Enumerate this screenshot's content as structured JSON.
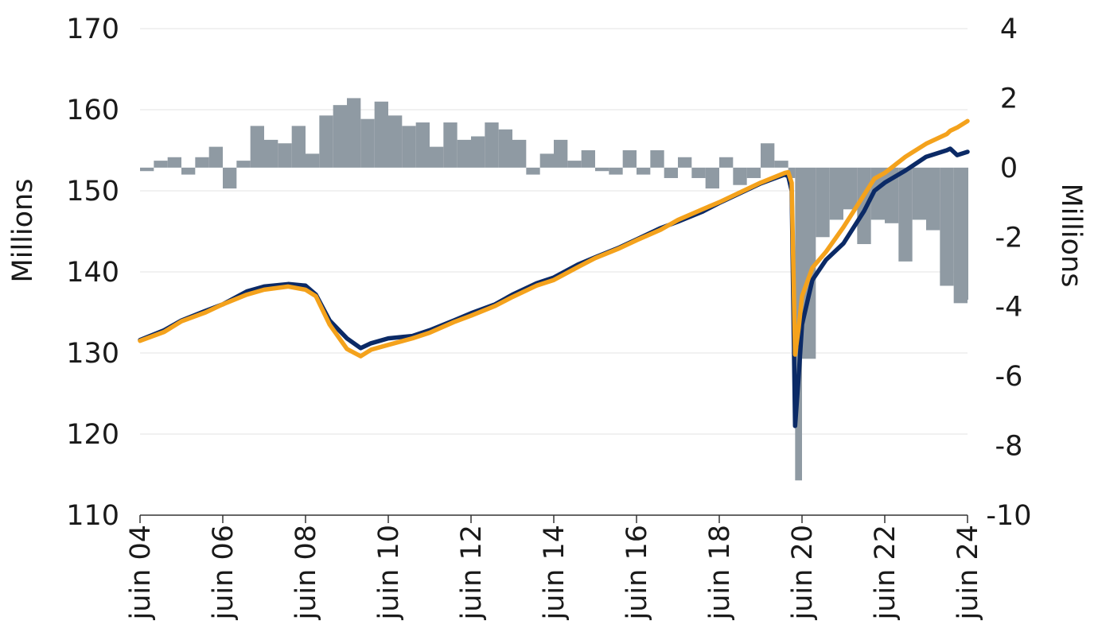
{
  "chart_data": {
    "type": "line",
    "colors": {
      "series_dark": "#0b2a66",
      "series_orange": "#f4a21c",
      "bars": "#8f9aa3",
      "grid": "#e3e3e3"
    },
    "xlabels": [
      "juin 04",
      "juin 06",
      "juin 08",
      "juin 10",
      "juin 12",
      "juin 14",
      "juin 16",
      "juin 18",
      "juin 20",
      "juin 22",
      "juin 24"
    ],
    "x_range": [
      "2004-06",
      "2024-06"
    ],
    "y_left": {
      "label": "Millions",
      "range": [
        110,
        170
      ],
      "ticks": [
        "110",
        "120",
        "130",
        "140",
        "150",
        "160",
        "170"
      ]
    },
    "y_right": {
      "label": "Millions",
      "range": [
        -10,
        4
      ],
      "ticks": [
        "-10",
        "-8",
        "-6",
        "-4",
        "-2",
        "0",
        "2",
        "4"
      ]
    },
    "series": [
      {
        "axis": "left",
        "color": "#0b2a66",
        "points": [
          [
            "2004-06",
            131.6
          ],
          [
            "2005-01",
            132.8
          ],
          [
            "2005-06",
            134.0
          ],
          [
            "2006-01",
            135.2
          ],
          [
            "2006-06",
            136.0
          ],
          [
            "2007-01",
            137.6
          ],
          [
            "2007-06",
            138.2
          ],
          [
            "2008-01",
            138.5
          ],
          [
            "2008-06",
            138.3
          ],
          [
            "2008-09",
            137.2
          ],
          [
            "2009-01",
            134.0
          ],
          [
            "2009-06",
            131.8
          ],
          [
            "2009-10",
            130.6
          ],
          [
            "2010-01",
            131.2
          ],
          [
            "2010-06",
            131.8
          ],
          [
            "2011-01",
            132.1
          ],
          [
            "2011-06",
            132.8
          ],
          [
            "2012-01",
            134.0
          ],
          [
            "2012-06",
            134.9
          ],
          [
            "2013-01",
            136.0
          ],
          [
            "2013-06",
            137.2
          ],
          [
            "2014-01",
            138.6
          ],
          [
            "2014-06",
            139.3
          ],
          [
            "2015-01",
            140.9
          ],
          [
            "2015-06",
            141.8
          ],
          [
            "2016-01",
            143.0
          ],
          [
            "2016-06",
            144.0
          ],
          [
            "2017-01",
            145.4
          ],
          [
            "2017-06",
            146.2
          ],
          [
            "2018-01",
            147.4
          ],
          [
            "2018-06",
            148.5
          ],
          [
            "2019-01",
            149.9
          ],
          [
            "2019-06",
            150.9
          ],
          [
            "2020-01",
            152.0
          ],
          [
            "2020-02",
            151.8
          ],
          [
            "2020-03",
            150.0
          ],
          [
            "2020-04",
            121.0
          ],
          [
            "2020-05",
            127.0
          ],
          [
            "2020-06",
            133.5
          ],
          [
            "2020-09",
            139.0
          ],
          [
            "2021-01",
            141.5
          ],
          [
            "2021-06",
            143.5
          ],
          [
            "2021-12",
            147.5
          ],
          [
            "2022-03",
            150.0
          ],
          [
            "2022-06",
            151.0
          ],
          [
            "2022-12",
            152.5
          ],
          [
            "2023-06",
            154.2
          ],
          [
            "2023-12",
            155.0
          ],
          [
            "2024-01",
            155.2
          ],
          [
            "2024-03",
            154.4
          ],
          [
            "2024-06",
            154.8
          ]
        ]
      },
      {
        "axis": "left",
        "color": "#f4a21c",
        "points": [
          [
            "2004-06",
            131.5
          ],
          [
            "2005-01",
            132.6
          ],
          [
            "2005-06",
            133.9
          ],
          [
            "2006-01",
            135.0
          ],
          [
            "2006-06",
            136.0
          ],
          [
            "2007-01",
            137.2
          ],
          [
            "2007-06",
            137.8
          ],
          [
            "2008-01",
            138.2
          ],
          [
            "2008-06",
            137.8
          ],
          [
            "2008-09",
            137.0
          ],
          [
            "2009-01",
            133.5
          ],
          [
            "2009-06",
            130.5
          ],
          [
            "2009-10",
            129.6
          ],
          [
            "2010-01",
            130.4
          ],
          [
            "2010-06",
            131.0
          ],
          [
            "2011-01",
            131.8
          ],
          [
            "2011-06",
            132.5
          ],
          [
            "2012-01",
            133.8
          ],
          [
            "2012-06",
            134.6
          ],
          [
            "2013-01",
            135.8
          ],
          [
            "2013-06",
            136.9
          ],
          [
            "2014-01",
            138.3
          ],
          [
            "2014-06",
            139.0
          ],
          [
            "2015-01",
            140.6
          ],
          [
            "2015-06",
            141.7
          ],
          [
            "2016-01",
            142.9
          ],
          [
            "2016-06",
            143.9
          ],
          [
            "2017-01",
            145.2
          ],
          [
            "2017-06",
            146.4
          ],
          [
            "2018-01",
            147.7
          ],
          [
            "2018-06",
            148.6
          ],
          [
            "2019-01",
            150.0
          ],
          [
            "2019-06",
            151.0
          ],
          [
            "2020-01",
            152.2
          ],
          [
            "2020-02",
            152.3
          ],
          [
            "2020-03",
            151.0
          ],
          [
            "2020-04",
            129.8
          ],
          [
            "2020-05",
            133.0
          ],
          [
            "2020-06",
            137.0
          ],
          [
            "2020-09",
            140.5
          ],
          [
            "2021-01",
            142.5
          ],
          [
            "2021-06",
            145.5
          ],
          [
            "2021-12",
            149.5
          ],
          [
            "2022-03",
            151.5
          ],
          [
            "2022-06",
            152.2
          ],
          [
            "2022-12",
            154.2
          ],
          [
            "2023-06",
            155.8
          ],
          [
            "2023-12",
            157.0
          ],
          [
            "2024-01",
            157.4
          ],
          [
            "2024-03",
            157.8
          ],
          [
            "2024-06",
            158.6
          ]
        ]
      },
      {
        "type": "bar",
        "axis": "right",
        "color": "#8f9aa3",
        "points": [
          [
            "2004-06",
            -0.1
          ],
          [
            "2004-10",
            0.2
          ],
          [
            "2005-02",
            0.3
          ],
          [
            "2005-06",
            -0.2
          ],
          [
            "2005-10",
            0.3
          ],
          [
            "2006-02",
            0.6
          ],
          [
            "2006-06",
            -0.6
          ],
          [
            "2006-10",
            0.2
          ],
          [
            "2007-02",
            1.2
          ],
          [
            "2007-06",
            0.8
          ],
          [
            "2007-10",
            0.7
          ],
          [
            "2008-02",
            1.2
          ],
          [
            "2008-06",
            0.4
          ],
          [
            "2008-10",
            1.5
          ],
          [
            "2009-02",
            1.8
          ],
          [
            "2009-06",
            2.0
          ],
          [
            "2009-10",
            1.4
          ],
          [
            "2010-02",
            1.9
          ],
          [
            "2010-06",
            1.5
          ],
          [
            "2010-10",
            1.2
          ],
          [
            "2011-02",
            1.3
          ],
          [
            "2011-06",
            0.6
          ],
          [
            "2011-10",
            1.3
          ],
          [
            "2012-02",
            0.8
          ],
          [
            "2012-06",
            0.9
          ],
          [
            "2012-10",
            1.3
          ],
          [
            "2013-02",
            1.1
          ],
          [
            "2013-06",
            0.8
          ],
          [
            "2013-10",
            -0.2
          ],
          [
            "2014-02",
            0.4
          ],
          [
            "2014-06",
            0.8
          ],
          [
            "2014-10",
            0.2
          ],
          [
            "2015-02",
            0.5
          ],
          [
            "2015-06",
            -0.1
          ],
          [
            "2015-10",
            -0.2
          ],
          [
            "2016-02",
            0.5
          ],
          [
            "2016-06",
            -0.2
          ],
          [
            "2016-10",
            0.5
          ],
          [
            "2017-02",
            -0.3
          ],
          [
            "2017-06",
            0.3
          ],
          [
            "2017-10",
            -0.3
          ],
          [
            "2018-02",
            -0.6
          ],
          [
            "2018-06",
            0.3
          ],
          [
            "2018-10",
            -0.5
          ],
          [
            "2019-02",
            -0.3
          ],
          [
            "2019-06",
            0.7
          ],
          [
            "2019-10",
            0.2
          ],
          [
            "2020-02",
            -0.3
          ],
          [
            "2020-04",
            -9.0
          ],
          [
            "2020-06",
            -5.5
          ],
          [
            "2020-10",
            -2.0
          ],
          [
            "2021-02",
            -1.5
          ],
          [
            "2021-06",
            -1.2
          ],
          [
            "2021-10",
            -2.2
          ],
          [
            "2022-02",
            -1.5
          ],
          [
            "2022-06",
            -1.6
          ],
          [
            "2022-10",
            -2.7
          ],
          [
            "2023-02",
            -1.5
          ],
          [
            "2023-06",
            -1.8
          ],
          [
            "2023-10",
            -3.4
          ],
          [
            "2024-02",
            -3.9
          ],
          [
            "2024-06",
            -3.8
          ]
        ]
      }
    ]
  }
}
